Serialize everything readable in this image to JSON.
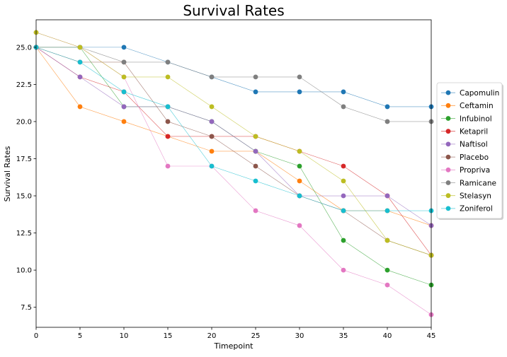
{
  "chart_data": {
    "type": "line",
    "title": "Survival Rates",
    "xlabel": "Timepoint",
    "ylabel": "Survival Rates",
    "xlim": [
      0,
      45
    ],
    "ylim": [
      6.15,
      26.85
    ],
    "x_ticks": [
      0,
      5,
      10,
      15,
      20,
      25,
      30,
      35,
      40,
      45
    ],
    "y_ticks": [
      7.5,
      10.0,
      12.5,
      15.0,
      17.5,
      20.0,
      22.5,
      25.0
    ],
    "x_tick_labels": [
      "0",
      "5",
      "10",
      "15",
      "20",
      "25",
      "30",
      "35",
      "40",
      "45"
    ],
    "y_tick_labels": [
      "7.5",
      "10.0",
      "12.5",
      "15.0",
      "17.5",
      "20.0",
      "22.5",
      "25.0"
    ],
    "grid": false,
    "legend_position": "outside-right",
    "x": [
      0,
      5,
      10,
      15,
      20,
      25,
      30,
      35,
      40,
      45
    ],
    "series": [
      {
        "name": "Capomulin",
        "color": "#1f77b4",
        "values": [
          25,
          25,
          25,
          24,
          23,
          22,
          22,
          22,
          21,
          21
        ]
      },
      {
        "name": "Ceftamin",
        "color": "#ff7f0e",
        "values": [
          25,
          21,
          20,
          19,
          18,
          18,
          16,
          14,
          14,
          13
        ]
      },
      {
        "name": "Infubinol",
        "color": "#2ca02c",
        "values": [
          25,
          25,
          21,
          21,
          20,
          18,
          17,
          12,
          10,
          9
        ]
      },
      {
        "name": "Ketapril",
        "color": "#d62728",
        "values": [
          25,
          23,
          22,
          19,
          19,
          19,
          18,
          17,
          15,
          11
        ]
      },
      {
        "name": "Naftisol",
        "color": "#9467bd",
        "values": [
          25,
          23,
          21,
          21,
          20,
          18,
          15,
          15,
          15,
          13
        ]
      },
      {
        "name": "Placebo",
        "color": "#8c564b",
        "values": [
          25,
          24,
          24,
          20,
          19,
          17,
          15,
          14,
          12,
          11
        ]
      },
      {
        "name": "Propriva",
        "color": "#e377c2",
        "values": [
          26,
          25,
          23,
          17,
          17,
          14,
          13,
          10,
          9,
          7
        ]
      },
      {
        "name": "Ramicane",
        "color": "#7f7f7f",
        "values": [
          25,
          25,
          24,
          24,
          23,
          23,
          23,
          21,
          20,
          20
        ]
      },
      {
        "name": "Stelasyn",
        "color": "#bcbd22",
        "values": [
          26,
          25,
          23,
          23,
          21,
          19,
          18,
          16,
          12,
          11
        ]
      },
      {
        "name": "Zoniferol",
        "color": "#17becf",
        "values": [
          25,
          24,
          22,
          21,
          17,
          16,
          15,
          14,
          14,
          14
        ]
      }
    ]
  }
}
